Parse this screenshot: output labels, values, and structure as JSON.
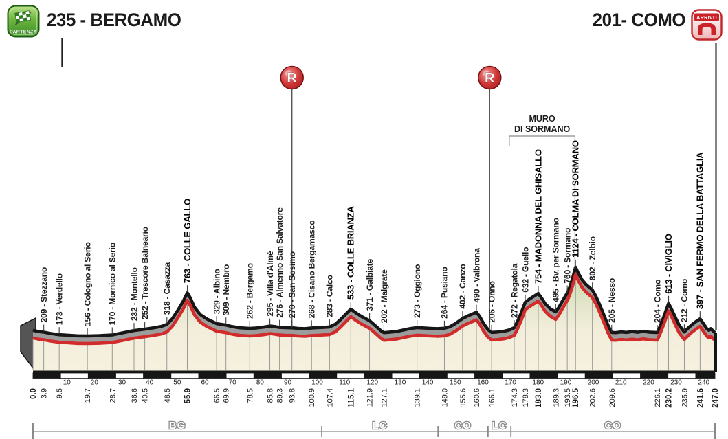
{
  "header": {
    "start_label": "235 - BERGAMO",
    "finish_label": "201- COMO",
    "partenza_badge": "PARTENZA",
    "arrivo_badge": "ARRIVO"
  },
  "colors": {
    "profile_gray": "#9c9c9c",
    "profile_outline": "#161616",
    "profile_red": "#d12b2b",
    "muro_red": "#d02c2c",
    "under_cream": "#f3eedb",
    "under_green": "#c9ddae",
    "feed_red": "#d03535",
    "partenza_green": "#4d9e2f",
    "arrivo_red": "#cc2127",
    "bracket_gray": "#8a8a8a"
  },
  "chart_data": {
    "type": "area",
    "x_range_km": [
      0,
      247
    ],
    "summit_elev_m": 1124,
    "profile": [
      [
        0,
        235
      ],
      [
        2,
        218
      ],
      [
        3.9,
        209
      ],
      [
        6.5,
        190
      ],
      [
        9.5,
        173
      ],
      [
        13,
        165
      ],
      [
        16,
        158
      ],
      [
        19.7,
        156
      ],
      [
        24,
        160
      ],
      [
        28.7,
        170
      ],
      [
        32,
        195
      ],
      [
        36.6,
        232
      ],
      [
        40.5,
        252
      ],
      [
        44,
        272
      ],
      [
        46.5,
        290
      ],
      [
        48.5,
        318
      ],
      [
        50.5,
        400
      ],
      [
        52.5,
        520
      ],
      [
        54.5,
        650
      ],
      [
        55.9,
        763
      ],
      [
        57,
        690
      ],
      [
        58.5,
        560
      ],
      [
        60.5,
        460
      ],
      [
        63,
        395
      ],
      [
        66.5,
        329
      ],
      [
        69.9,
        309
      ],
      [
        72,
        288
      ],
      [
        75,
        270
      ],
      [
        78.5,
        262
      ],
      [
        81,
        268
      ],
      [
        83.5,
        280
      ],
      [
        85.8,
        295
      ],
      [
        87.5,
        288
      ],
      [
        89.3,
        276
      ],
      [
        91.5,
        272
      ],
      [
        93.8,
        270
      ],
      [
        96,
        262
      ],
      [
        98.5,
        258
      ],
      [
        100.9,
        268
      ],
      [
        103,
        272
      ],
      [
        105,
        276
      ],
      [
        107.4,
        283
      ],
      [
        109.5,
        320
      ],
      [
        111.5,
        390
      ],
      [
        113.5,
        470
      ],
      [
        115.1,
        533
      ],
      [
        117,
        480
      ],
      [
        119,
        430
      ],
      [
        121.9,
        371
      ],
      [
        124,
        300
      ],
      [
        126,
        230
      ],
      [
        127.1,
        202
      ],
      [
        129,
        208
      ],
      [
        131.5,
        218
      ],
      [
        134,
        238
      ],
      [
        136.5,
        258
      ],
      [
        139.1,
        273
      ],
      [
        141.5,
        268
      ],
      [
        144,
        262
      ],
      [
        146.5,
        258
      ],
      [
        149,
        264
      ],
      [
        151,
        285
      ],
      [
        153,
        330
      ],
      [
        155.6,
        402
      ],
      [
        157.5,
        438
      ],
      [
        159,
        462
      ],
      [
        160.6,
        490
      ],
      [
        161.8,
        430
      ],
      [
        163.2,
        330
      ],
      [
        164.8,
        245
      ],
      [
        166.1,
        206
      ],
      [
        168,
        210
      ],
      [
        170.5,
        222
      ],
      [
        172.5,
        240
      ],
      [
        174.3,
        272
      ],
      [
        175.5,
        360
      ],
      [
        176.8,
        480
      ],
      [
        178.3,
        632
      ],
      [
        180,
        680
      ],
      [
        181.5,
        716
      ],
      [
        183,
        754
      ],
      [
        184.2,
        690
      ],
      [
        185.5,
        610
      ],
      [
        187.3,
        540
      ],
      [
        189.3,
        495
      ],
      [
        190.5,
        560
      ],
      [
        191.8,
        650
      ],
      [
        193.5,
        760
      ],
      [
        194.3,
        830
      ],
      [
        195.3,
        950
      ],
      [
        196.5,
        1124
      ],
      [
        197.5,
        1040
      ],
      [
        198.8,
        950
      ],
      [
        200.3,
        880
      ],
      [
        201.5,
        840
      ],
      [
        202.6,
        802
      ],
      [
        203.8,
        720
      ],
      [
        205.2,
        600
      ],
      [
        206.8,
        450
      ],
      [
        208.2,
        310
      ],
      [
        209.6,
        205
      ],
      [
        211,
        202
      ],
      [
        213,
        212
      ],
      [
        215,
        206
      ],
      [
        217,
        218
      ],
      [
        219,
        208
      ],
      [
        221,
        222
      ],
      [
        223,
        210
      ],
      [
        225,
        206
      ],
      [
        226.1,
        204
      ],
      [
        227.2,
        300
      ],
      [
        228.5,
        430
      ],
      [
        229.5,
        540
      ],
      [
        230.2,
        613
      ],
      [
        231.2,
        540
      ],
      [
        232.5,
        430
      ],
      [
        234,
        310
      ],
      [
        235.9,
        212
      ],
      [
        237,
        255
      ],
      [
        238.5,
        310
      ],
      [
        240,
        355
      ],
      [
        241.6,
        397
      ],
      [
        242.8,
        330
      ],
      [
        244,
        260
      ],
      [
        244.8,
        235
      ],
      [
        245.5,
        258
      ],
      [
        246.2,
        230
      ],
      [
        247,
        201
      ]
    ],
    "points": [
      {
        "km": 3.9,
        "elev": 209,
        "name": "Stezzano",
        "bold": false
      },
      {
        "km": 9.5,
        "elev": 173,
        "name": "Verdello",
        "bold": false
      },
      {
        "km": 19.7,
        "elev": 156,
        "name": "Cologno al Serio",
        "bold": false
      },
      {
        "km": 28.7,
        "elev": 170,
        "name": "Mornico al Serio",
        "bold": false
      },
      {
        "km": 36.6,
        "elev": 232,
        "name": "Montello",
        "bold": false
      },
      {
        "km": 40.5,
        "elev": 252,
        "name": "Trescore Balneario",
        "bold": false
      },
      {
        "km": 48.5,
        "elev": 318,
        "name": "Casazza",
        "bold": false
      },
      {
        "km": 55.9,
        "elev": 763,
        "name": "COLLE GALLO",
        "bold": true
      },
      {
        "km": 66.5,
        "elev": 329,
        "name": "Albino",
        "bold": false
      },
      {
        "km": 69.9,
        "elev": 309,
        "name": "Nembro",
        "bold": false
      },
      {
        "km": 78.5,
        "elev": 262,
        "name": "Bergamo",
        "bold": false
      },
      {
        "km": 85.8,
        "elev": 295,
        "name": "Villa d'Almè",
        "bold": false
      },
      {
        "km": 89.3,
        "elev": 276,
        "name": "Almenno San Salvatore",
        "bold": false
      },
      {
        "km": 93.8,
        "elev": 270,
        "name": "San Sosimo",
        "bold": false
      },
      {
        "km": 100.9,
        "elev": 268,
        "name": "Cisano Bergamasco",
        "bold": false
      },
      {
        "km": 107.4,
        "elev": 283,
        "name": "Calco",
        "bold": false
      },
      {
        "km": 115.1,
        "elev": 533,
        "name": "COLLE BRIANZA",
        "bold": true
      },
      {
        "km": 121.9,
        "elev": 371,
        "name": "Galbiate",
        "bold": false
      },
      {
        "km": 127.1,
        "elev": 202,
        "name": "Malgrate",
        "bold": false
      },
      {
        "km": 139.1,
        "elev": 273,
        "name": "Oggiono",
        "bold": false
      },
      {
        "km": 149.0,
        "elev": 264,
        "name": "Pusiano",
        "bold": false
      },
      {
        "km": 155.6,
        "elev": 402,
        "name": "Canzo",
        "bold": false
      },
      {
        "km": 160.6,
        "elev": 490,
        "name": "Valbrona",
        "bold": false
      },
      {
        "km": 166.1,
        "elev": 206,
        "name": "Onno",
        "bold": false
      },
      {
        "km": 174.3,
        "elev": 272,
        "name": "Regatola",
        "bold": false
      },
      {
        "km": 178.3,
        "elev": 632,
        "name": "Guello",
        "bold": false
      },
      {
        "km": 183.0,
        "elev": 754,
        "name": "MADONNA DEL GHISALLO",
        "bold": true
      },
      {
        "km": 189.3,
        "elev": 495,
        "name": "Bv. per Sormano",
        "bold": false
      },
      {
        "km": 193.5,
        "elev": 760,
        "name": "Sormano",
        "bold": false
      },
      {
        "km": 196.5,
        "elev": 1124,
        "name": "COLMA DI SORMANO",
        "bold": true
      },
      {
        "km": 202.6,
        "elev": 802,
        "name": "Zelbio",
        "bold": false
      },
      {
        "km": 209.6,
        "elev": 205,
        "name": "Nesso",
        "bold": false
      },
      {
        "km": 226.1,
        "elev": 204,
        "name": "Como",
        "bold": false
      },
      {
        "km": 230.2,
        "elev": 613,
        "name": "CIVIGLIO",
        "bold": true
      },
      {
        "km": 235.9,
        "elev": 212,
        "name": "Como",
        "bold": false
      },
      {
        "km": 241.6,
        "elev": 397,
        "name": "SAN FERMO DELLA BATTAGLIA",
        "bold": true
      }
    ],
    "distance_marks": [
      {
        "v": "0.0",
        "bold": true
      },
      {
        "v": "3.9",
        "bold": false
      },
      {
        "v": "9.5",
        "bold": false
      },
      {
        "v": "19.7",
        "bold": false
      },
      {
        "v": "28.7",
        "bold": false
      },
      {
        "v": "36.6",
        "bold": false
      },
      {
        "v": "40.5",
        "bold": false
      },
      {
        "v": "48.5",
        "bold": false
      },
      {
        "v": "55.9",
        "bold": true
      },
      {
        "v": "66.5",
        "bold": false
      },
      {
        "v": "69.9",
        "bold": false
      },
      {
        "v": "78.5",
        "bold": false
      },
      {
        "v": "85.8",
        "bold": false
      },
      {
        "v": "89.3",
        "bold": false
      },
      {
        "v": "93.8",
        "bold": false
      },
      {
        "v": "100.9",
        "bold": false
      },
      {
        "v": "107.4",
        "bold": false
      },
      {
        "v": "115.1",
        "bold": true
      },
      {
        "v": "121.9",
        "bold": false
      },
      {
        "v": "127.1",
        "bold": false
      },
      {
        "v": "139.1",
        "bold": false
      },
      {
        "v": "149.0",
        "bold": false
      },
      {
        "v": "155.6",
        "bold": false
      },
      {
        "v": "160.6",
        "bold": false
      },
      {
        "v": "166.1",
        "bold": false
      },
      {
        "v": "174.3",
        "bold": false
      },
      {
        "v": "178.3",
        "bold": false
      },
      {
        "v": "183.0",
        "bold": true
      },
      {
        "v": "189.3",
        "bold": false
      },
      {
        "v": "193.5",
        "bold": false
      },
      {
        "v": "196.5",
        "bold": true
      },
      {
        "v": "202.6",
        "bold": false
      },
      {
        "v": "209.6",
        "bold": false
      },
      {
        "v": "226.1",
        "bold": false
      },
      {
        "v": "230.2",
        "bold": true
      },
      {
        "v": "235.9",
        "bold": false
      },
      {
        "v": "241.6",
        "bold": true
      },
      {
        "v": "247.0",
        "bold": true
      }
    ],
    "axis_decade_step_km": 10,
    "muro": {
      "line1": "MURO",
      "line2": "DI SORMANO",
      "bracket_from_km": 172.5,
      "bracket_to_km": 196.3,
      "red_from_km": 193.2,
      "red_to_km": 196.5
    },
    "feed_zones": [
      {
        "symbol": "R",
        "km": 93.8
      },
      {
        "symbol": "R",
        "km": 165.4
      }
    ],
    "provinces": [
      {
        "label": "BG",
        "from_km": 0,
        "to_km": 104.6
      },
      {
        "label": "LC",
        "from_km": 104.6,
        "to_km": 146.7
      },
      {
        "label": "CO",
        "from_km": 146.7,
        "to_km": 164.8
      },
      {
        "label": "LC",
        "from_km": 164.8,
        "to_km": 173.1
      },
      {
        "label": "CO",
        "from_km": 173.1,
        "to_km": 247
      }
    ]
  }
}
